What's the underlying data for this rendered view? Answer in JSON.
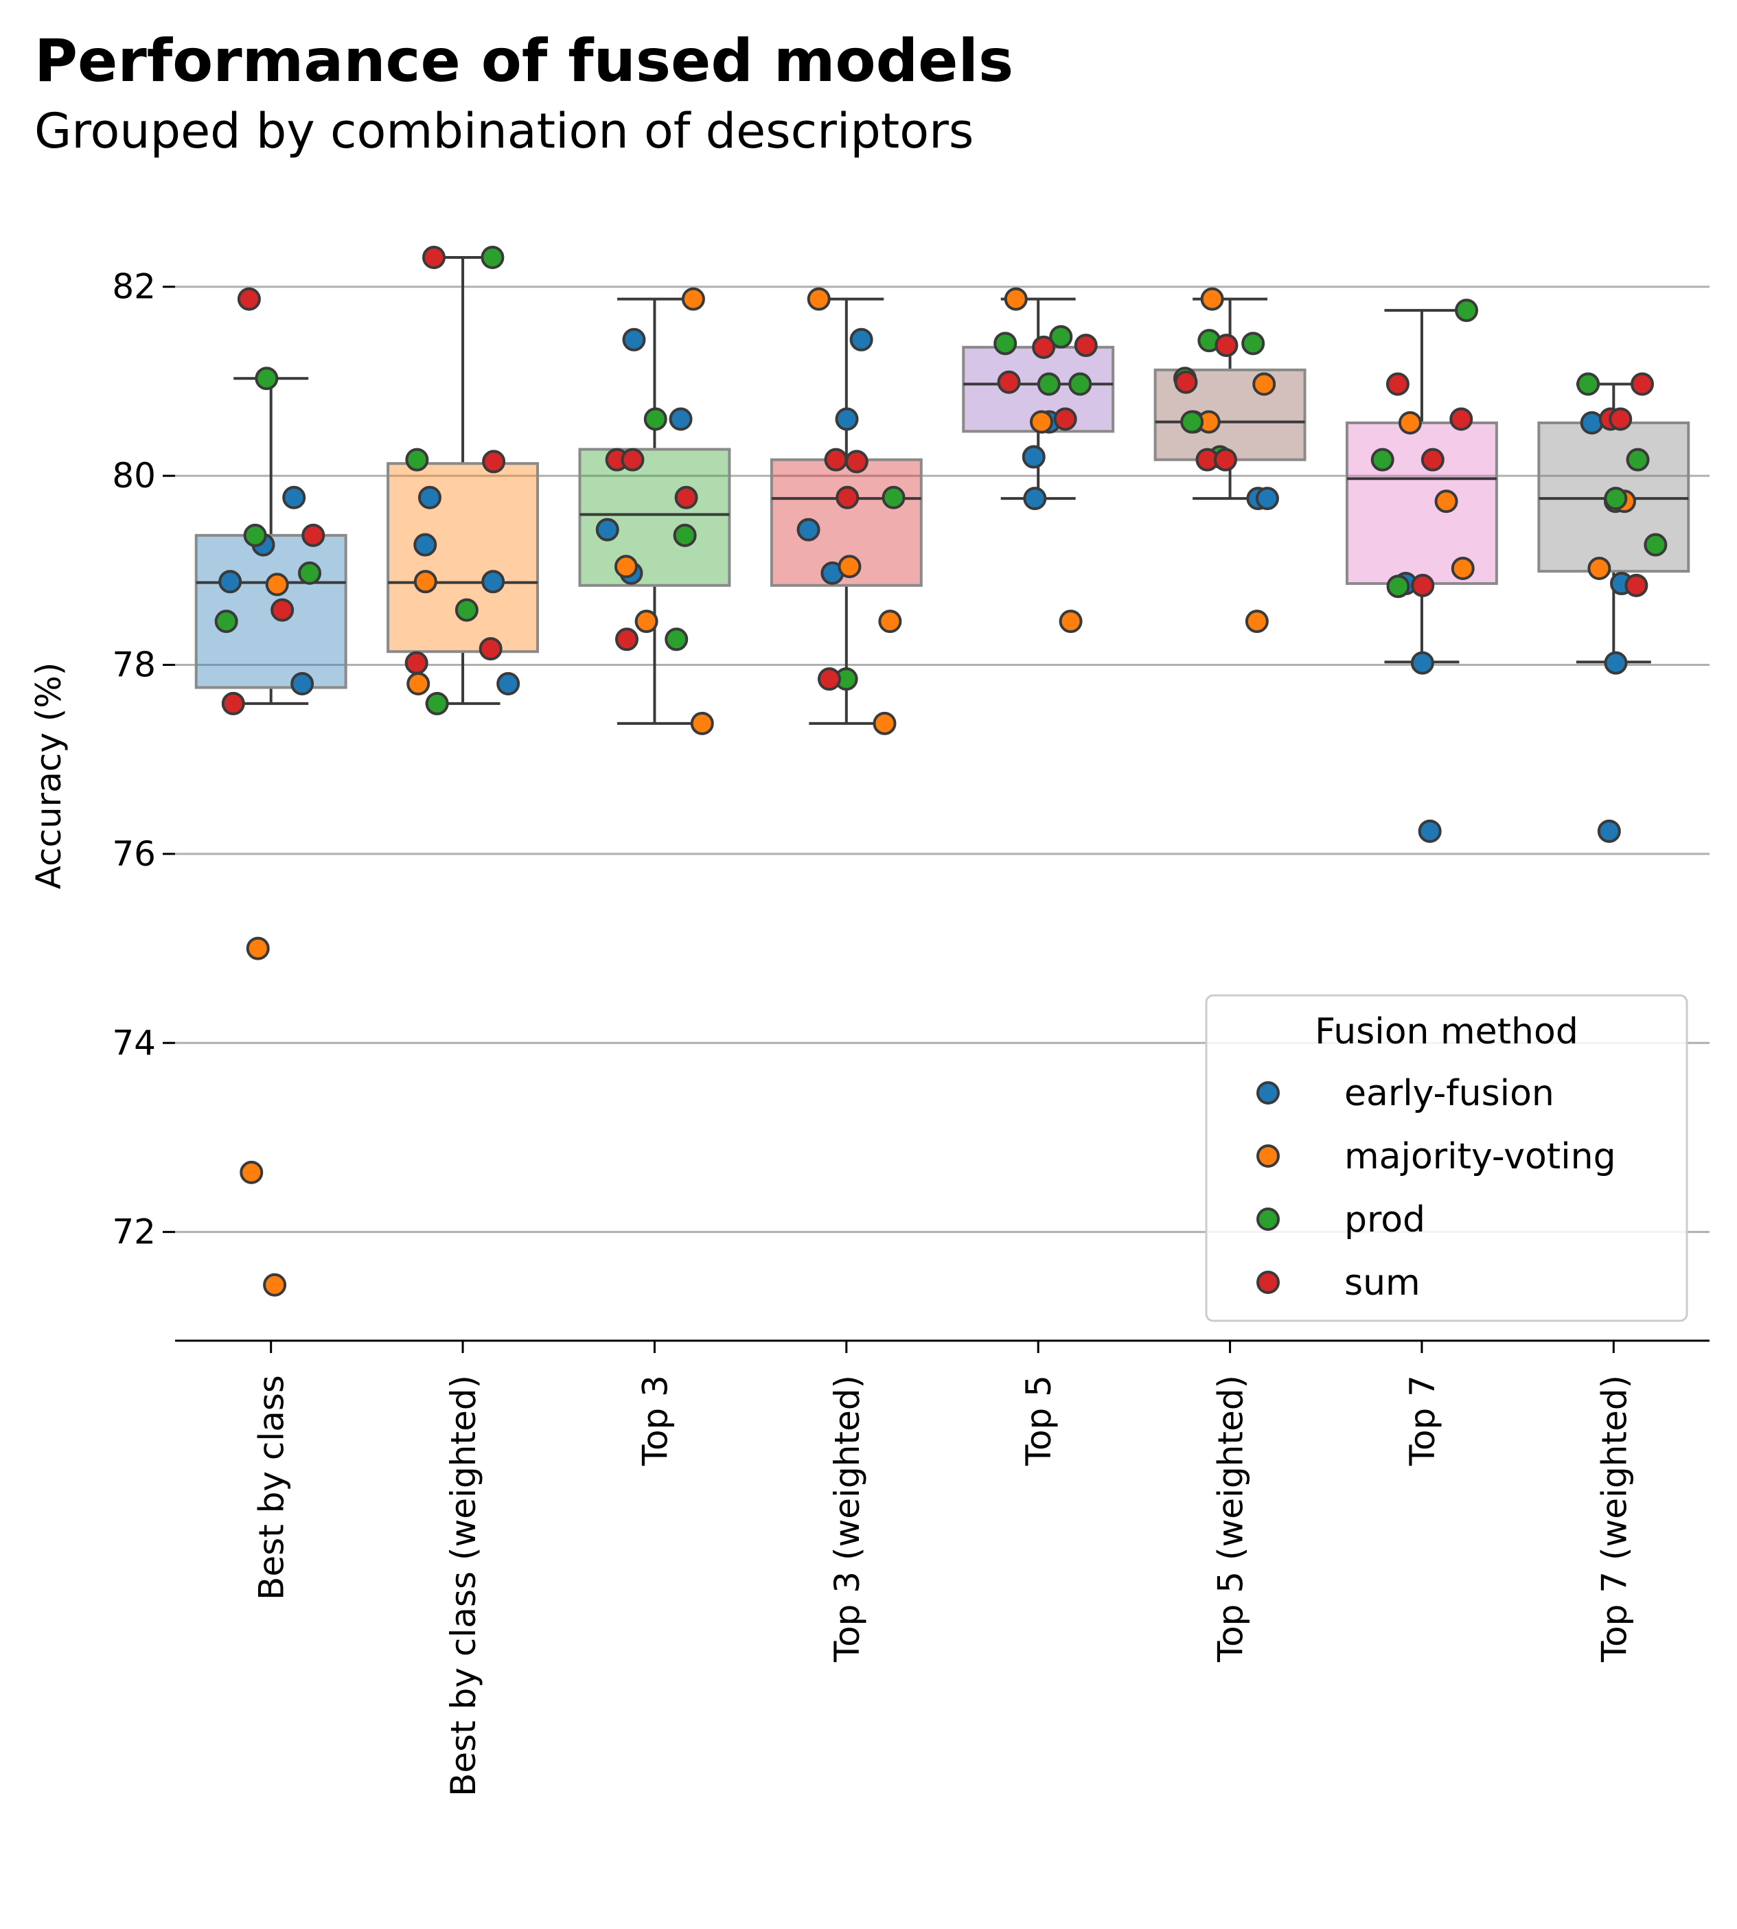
{
  "chart_data": {
    "type": "box",
    "title": "Performance of fused models",
    "subtitle": "Grouped by combination of descriptors",
    "ylabel": "Accuracy (%)",
    "xlabel": "",
    "ylim": [
      70.85,
      83.0
    ],
    "yticks": [
      72,
      74,
      76,
      78,
      80,
      82
    ],
    "grid": "y",
    "categories": [
      "Best by class",
      "Best by class (weighted)",
      "Top 3",
      "Top 3 (weighted)",
      "Top 5",
      "Top 5 (weighted)",
      "Top 7",
      "Top 7 (weighted)"
    ],
    "box_colors": [
      "#1f77b4",
      "#ff7f0e",
      "#2ca02c",
      "#d62728",
      "#9467bd",
      "#8c564b",
      "#e377c2",
      "#7f7f7f"
    ],
    "boxes": [
      {
        "q1": 77.76,
        "median": 78.87,
        "q3": 79.37,
        "whisker_low": 77.59,
        "whisker_high": 81.03
      },
      {
        "q1": 78.14,
        "median": 78.87,
        "q3": 80.13,
        "whisker_low": 77.59,
        "whisker_high": 82.31
      },
      {
        "q1": 78.84,
        "median": 79.59,
        "q3": 80.28,
        "whisker_low": 77.38,
        "whisker_high": 81.87
      },
      {
        "q1": 78.84,
        "median": 79.76,
        "q3": 80.17,
        "whisker_low": 77.38,
        "whisker_high": 81.87
      },
      {
        "q1": 80.47,
        "median": 80.97,
        "q3": 81.36,
        "whisker_low": 79.76,
        "whisker_high": 81.87
      },
      {
        "q1": 80.17,
        "median": 80.57,
        "q3": 81.12,
        "whisker_low": 79.76,
        "whisker_high": 81.87
      },
      {
        "q1": 78.86,
        "median": 79.97,
        "q3": 80.56,
        "whisker_low": 78.03,
        "whisker_high": 81.75
      },
      {
        "q1": 78.99,
        "median": 79.76,
        "q3": 80.56,
        "whisker_low": 78.03,
        "whisker_high": 80.97
      }
    ],
    "legend": {
      "title": "Fusion method",
      "position": "lower-right"
    },
    "series": [
      {
        "name": "early-fusion",
        "color": "#1f77b4",
        "points": [
          [
            0,
            79.77
          ],
          [
            0,
            78.88
          ],
          [
            0,
            79.27
          ],
          [
            0,
            77.8
          ],
          [
            1,
            79.77
          ],
          [
            1,
            78.88
          ],
          [
            1,
            79.27
          ],
          [
            1,
            77.8
          ],
          [
            2,
            81.44
          ],
          [
            2,
            80.6
          ],
          [
            2,
            79.43
          ],
          [
            2,
            78.97
          ],
          [
            3,
            81.44
          ],
          [
            3,
            80.6
          ],
          [
            3,
            79.43
          ],
          [
            3,
            78.97
          ],
          [
            4,
            80.57
          ],
          [
            4,
            80.2
          ],
          [
            4,
            79.76
          ],
          [
            5,
            80.57
          ],
          [
            5,
            79.76
          ],
          [
            5,
            79.76
          ],
          [
            6,
            78.86
          ],
          [
            6,
            78.02
          ],
          [
            6,
            76.24
          ],
          [
            7,
            80.56
          ],
          [
            7,
            78.86
          ],
          [
            7,
            78.02
          ],
          [
            7,
            76.24
          ]
        ]
      },
      {
        "name": "majority-voting",
        "color": "#ff7f0e",
        "points": [
          [
            0,
            78.85
          ],
          [
            0,
            75.0
          ],
          [
            0,
            72.63
          ],
          [
            0,
            71.44
          ],
          [
            1,
            78.88
          ],
          [
            1,
            77.8
          ],
          [
            2,
            81.87
          ],
          [
            2,
            79.04
          ],
          [
            2,
            78.46
          ],
          [
            2,
            77.38
          ],
          [
            3,
            81.87
          ],
          [
            3,
            79.04
          ],
          [
            3,
            78.46
          ],
          [
            3,
            77.38
          ],
          [
            4,
            81.87
          ],
          [
            4,
            80.57
          ],
          [
            4,
            78.46
          ],
          [
            5,
            81.87
          ],
          [
            5,
            80.97
          ],
          [
            5,
            80.57
          ],
          [
            5,
            78.46
          ],
          [
            6,
            80.56
          ],
          [
            6,
            79.73
          ],
          [
            6,
            79.02
          ],
          [
            7,
            79.73
          ],
          [
            7,
            79.73
          ],
          [
            7,
            79.02
          ]
        ]
      },
      {
        "name": "prod",
        "color": "#2ca02c",
        "points": [
          [
            0,
            81.03
          ],
          [
            0,
            79.37
          ],
          [
            0,
            78.97
          ],
          [
            0,
            78.46
          ],
          [
            1,
            82.31
          ],
          [
            1,
            80.17
          ],
          [
            1,
            78.58
          ],
          [
            1,
            77.59
          ],
          [
            2,
            80.6
          ],
          [
            2,
            79.37
          ],
          [
            2,
            78.27
          ],
          [
            3,
            79.77
          ],
          [
            3,
            77.85
          ],
          [
            4,
            81.47
          ],
          [
            4,
            81.4
          ],
          [
            4,
            80.97
          ],
          [
            4,
            80.97
          ],
          [
            5,
            81.43
          ],
          [
            5,
            81.4
          ],
          [
            5,
            81.03
          ],
          [
            5,
            80.57
          ],
          [
            5,
            80.2
          ],
          [
            6,
            81.75
          ],
          [
            6,
            80.17
          ],
          [
            6,
            78.83
          ],
          [
            7,
            80.97
          ],
          [
            7,
            80.17
          ],
          [
            7,
            79.76
          ],
          [
            7,
            79.27
          ]
        ]
      },
      {
        "name": "sum",
        "color": "#d62728",
        "points": [
          [
            0,
            81.87
          ],
          [
            0,
            79.37
          ],
          [
            0,
            78.58
          ],
          [
            0,
            77.59
          ],
          [
            1,
            82.31
          ],
          [
            1,
            80.15
          ],
          [
            1,
            78.17
          ],
          [
            1,
            78.02
          ],
          [
            2,
            80.17
          ],
          [
            2,
            80.17
          ],
          [
            2,
            79.77
          ],
          [
            2,
            78.27
          ],
          [
            3,
            80.17
          ],
          [
            3,
            80.15
          ],
          [
            3,
            79.77
          ],
          [
            3,
            77.85
          ],
          [
            4,
            81.38
          ],
          [
            4,
            81.36
          ],
          [
            4,
            80.99
          ],
          [
            4,
            80.6
          ],
          [
            5,
            81.38
          ],
          [
            5,
            80.99
          ],
          [
            5,
            80.17
          ],
          [
            5,
            80.17
          ],
          [
            6,
            80.97
          ],
          [
            6,
            80.6
          ],
          [
            6,
            80.17
          ],
          [
            6,
            78.84
          ],
          [
            7,
            80.97
          ],
          [
            7,
            80.6
          ],
          [
            7,
            80.6
          ],
          [
            7,
            78.84
          ]
        ]
      }
    ]
  }
}
